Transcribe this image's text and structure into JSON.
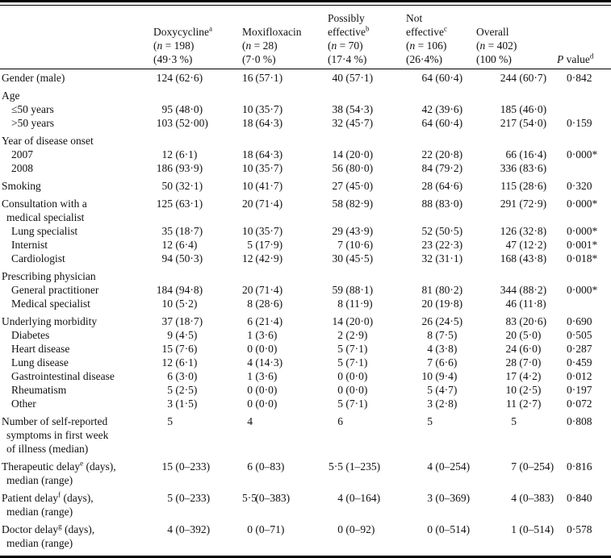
{
  "colors": {
    "text": "#111111",
    "rule": "#000000",
    "background": "#ffffff"
  },
  "table": {
    "p_header": "P value^d",
    "columns": [
      {
        "name_lines": [
          "Doxycycline^a"
        ],
        "n": "(n=198)",
        "pct": "(49·3 %)"
      },
      {
        "name_lines": [
          "Moxifloxacin"
        ],
        "n": "(n=28)",
        "pct": "(7·0 %)"
      },
      {
        "name_lines": [
          "Possibly",
          "effective^b"
        ],
        "n": "(n=70)",
        "pct": "(17·4 %)"
      },
      {
        "name_lines": [
          "Not",
          "effective^c"
        ],
        "n": "(n=106)",
        "pct": "(26·4%)"
      },
      {
        "name_lines": [
          "Overall"
        ],
        "n": "(n=402)",
        "pct": "(100 %)"
      }
    ],
    "rows": [
      {
        "label_lines": [
          "Gender (male)"
        ],
        "indent": 0,
        "cells": [
          "124 (62·6)",
          "16 (57·1)",
          "40 (57·1)",
          "64 (60·4)",
          "244 (60·7)"
        ],
        "p": "0·842"
      },
      {
        "label_lines": [
          "Age"
        ],
        "indent": 0,
        "cells": [
          "",
          "",
          "",
          "",
          ""
        ],
        "p": ""
      },
      {
        "label_lines": [
          "≤50 years"
        ],
        "indent": 1,
        "cells": [
          "95 (48·0)",
          "10 (35·7)",
          "38 (54·3)",
          "42 (39·6)",
          "185 (46·0)"
        ],
        "p": ""
      },
      {
        "label_lines": [
          ">50 years"
        ],
        "indent": 1,
        "cells": [
          "103 (52·00)",
          "18 (64·3)",
          "32 (45·7)",
          "64 (60·4)",
          "217 (54·0)"
        ],
        "p": "0·159"
      },
      {
        "label_lines": [
          "Year of disease onset"
        ],
        "indent": 0,
        "cells": [
          "",
          "",
          "",
          "",
          ""
        ],
        "p": ""
      },
      {
        "label_lines": [
          "2007"
        ],
        "indent": 1,
        "cells": [
          "12 (6·1)",
          "18 (64·3)",
          "14 (20·0)",
          "22 (20·8)",
          "66 (16·4)"
        ],
        "p": "0·000*"
      },
      {
        "label_lines": [
          "2008"
        ],
        "indent": 1,
        "cells": [
          "186 (93·9)",
          "10 (35·7)",
          "56 (80·0)",
          "84 (79·2)",
          "336 (83·6)"
        ],
        "p": ""
      },
      {
        "label_lines": [
          "Smoking"
        ],
        "indent": 0,
        "cells": [
          "50 (32·1)",
          "10 (41·7)",
          "27 (45·0)",
          "28 (64·6)",
          "115 (28·6)"
        ],
        "p": "0·320"
      },
      {
        "label_lines": [
          "Consultation with a",
          "medical specialist"
        ],
        "indent": 0,
        "cells": [
          "125 (63·1)",
          "20 (71·4)",
          "58 (82·9)",
          "88 (83·0)",
          "291 (72·9)"
        ],
        "p": "0·000*"
      },
      {
        "label_lines": [
          "Lung specialist"
        ],
        "indent": 1,
        "cells": [
          "35 (18·7)",
          "10 (35·7)",
          "29 (43·9)",
          "52 (50·5)",
          "126 (32·8)"
        ],
        "p": "0·000*"
      },
      {
        "label_lines": [
          "Internist"
        ],
        "indent": 1,
        "cells": [
          "12 (6·4)",
          "5 (17·9)",
          "7 (10·6)",
          "23 (22·3)",
          "47 (12·2)"
        ],
        "p": "0·001*"
      },
      {
        "label_lines": [
          "Cardiologist"
        ],
        "indent": 1,
        "cells": [
          "94 (50·3)",
          "12 (42·9)",
          "30 (45·5)",
          "32 (31·1)",
          "168 (43·8)"
        ],
        "p": "0·018*"
      },
      {
        "label_lines": [
          "Prescribing physician"
        ],
        "indent": 0,
        "cells": [
          "",
          "",
          "",
          "",
          ""
        ],
        "p": ""
      },
      {
        "label_lines": [
          "General practitioner"
        ],
        "indent": 1,
        "cells": [
          "184 (94·8)",
          "20 (71·4)",
          "59 (88·1)",
          "81 (80·2)",
          "344 (88·2)"
        ],
        "p": "0·000*"
      },
      {
        "label_lines": [
          "Medical specialist"
        ],
        "indent": 1,
        "cells": [
          "10 (5·2)",
          "8 (28·6)",
          "8 (11·9)",
          "20 (19·8)",
          "46 (11·8)"
        ],
        "p": ""
      },
      {
        "label_lines": [
          "Underlying morbidity"
        ],
        "indent": 0,
        "cells": [
          "37 (18·7)",
          "6 (21·4)",
          "14 (20·0)",
          "26 (24·5)",
          "83 (20·6)"
        ],
        "p": "0·690"
      },
      {
        "label_lines": [
          "Diabetes"
        ],
        "indent": 1,
        "cells": [
          "9 (4·5)",
          "1 (3·6)",
          "2 (2·9)",
          "8 (7·5)",
          "20 (5·0)"
        ],
        "p": "0·505"
      },
      {
        "label_lines": [
          "Heart disease"
        ],
        "indent": 1,
        "cells": [
          "15 (7·6)",
          "0 (0·0)",
          "5 (7·1)",
          "4 (3·8)",
          "24 (6·0)"
        ],
        "p": "0·287"
      },
      {
        "label_lines": [
          "Lung disease"
        ],
        "indent": 1,
        "cells": [
          "12 (6·1)",
          "4 (14·3)",
          "5 (7·1)",
          "7 (6·6)",
          "28 (7·0)"
        ],
        "p": "0·459"
      },
      {
        "label_lines": [
          "Gastrointestinal disease"
        ],
        "indent": 1,
        "cells": [
          "6 (3·0)",
          "1 (3·6)",
          "0 (0·0)",
          "10 (9·4)",
          "17 (4·2)"
        ],
        "p": "0·012"
      },
      {
        "label_lines": [
          "Rheumatism"
        ],
        "indent": 1,
        "cells": [
          "5 (2·5)",
          "0 (0·0)",
          "0 (0·0)",
          "5 (4·7)",
          "10 (2·5)"
        ],
        "p": "0·197"
      },
      {
        "label_lines": [
          "Other"
        ],
        "indent": 1,
        "cells": [
          "3 (1·5)",
          "0 (0·0)",
          "5 (7·1)",
          "3 (2·8)",
          "11 (2·7)"
        ],
        "p": "0·072"
      },
      {
        "label_lines": [
          "Number of self-reported",
          "symptoms in first week",
          "of illness (median)"
        ],
        "indent": 0,
        "cells": [
          "5",
          "4",
          "6",
          "5",
          "5"
        ],
        "p": "0·808"
      },
      {
        "label_lines": [
          "Therapeutic delay^e (days),",
          "median (range)"
        ],
        "indent": 0,
        "cells": [
          "15 (0–233)",
          "6 (0–83)",
          "5·5 (1–235)",
          "4 (0–254)",
          "7 (0–254)"
        ],
        "p": "0·816"
      },
      {
        "label_lines": [
          "Patient delay^f (days),",
          "median (range)"
        ],
        "indent": 0,
        "cells": [
          "5 (0–233)",
          "5·5 (0–383)",
          "4 (0–164)",
          "3 (0–369)",
          "4 (0–383)"
        ],
        "p": "0·840"
      },
      {
        "label_lines": [
          "Doctor delay^g (days),",
          "median (range)"
        ],
        "indent": 0,
        "cells": [
          "4 (0–392)",
          "0 (0–71)",
          "0 (0–92)",
          "0 (0–514)",
          "1 (0–514)"
        ],
        "p": "0·578"
      }
    ]
  }
}
